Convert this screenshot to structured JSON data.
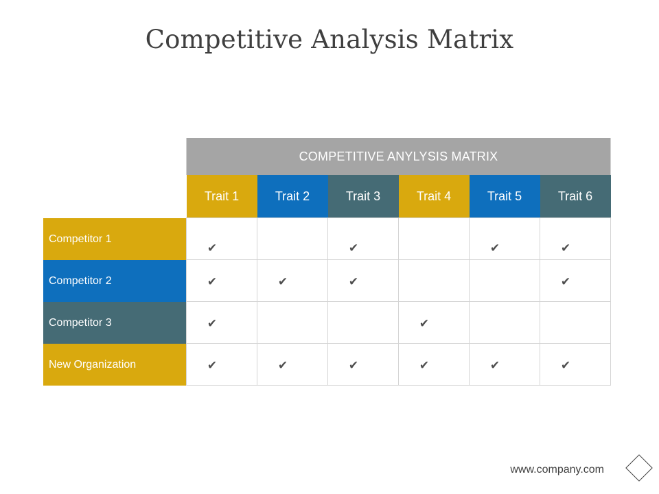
{
  "title": "Competitive Analysis Matrix",
  "matrix": {
    "banner": "COMPETITIVE ANYLYSIS MATRIX",
    "traits": [
      {
        "label": "Trait 1",
        "color": "#D9A90E"
      },
      {
        "label": "Trait 2",
        "color": "#0E6FBD"
      },
      {
        "label": "Trait 3",
        "color": "#456B75"
      },
      {
        "label": "Trait 4",
        "color": "#D9A90E"
      },
      {
        "label": "Trait 5",
        "color": "#0E6FBD"
      },
      {
        "label": "Trait 6",
        "color": "#456B75"
      }
    ],
    "rows": [
      {
        "label": "Competitor 1",
        "color": "#D9A90E",
        "checks": [
          true,
          false,
          true,
          false,
          true,
          true
        ]
      },
      {
        "label": "Competitor 2",
        "color": "#0E6FBD",
        "checks": [
          true,
          true,
          true,
          false,
          false,
          true
        ]
      },
      {
        "label": "Competitor 3",
        "color": "#456B75",
        "checks": [
          true,
          false,
          false,
          true,
          false,
          false
        ]
      },
      {
        "label": "New Organization",
        "color": "#D9A90E",
        "checks": [
          true,
          true,
          true,
          true,
          true,
          true
        ]
      }
    ],
    "check_glyph": "✔"
  },
  "footer": {
    "url": "www.company.com",
    "icon": "diamond-outline-icon"
  }
}
